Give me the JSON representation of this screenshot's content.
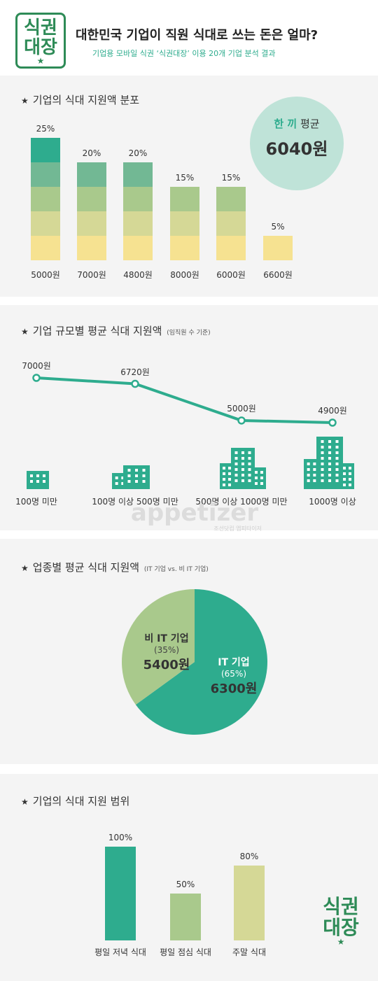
{
  "header": {
    "logo_line1": "식권",
    "logo_line2": "대장",
    "title": "대한민국 기업이 직원 식대로 쓰는 돈은 얼마?",
    "subtitle": "기업용 모바일 식권 ‘식권대장’ 이용 20개 기업 분석 결과"
  },
  "colors": {
    "green_dark": "#2eac8e",
    "green_mid": "#72b894",
    "green_light": "#a9c98c",
    "yellow_green": "#d5d896",
    "yellow": "#f6e291",
    "accent": "#2e8b57"
  },
  "section1": {
    "title": "기업의 식대 지원액 분포",
    "avg_label_highlight": "한 끼",
    "avg_label_rest": " 평균",
    "avg_value": "6040원"
  },
  "section2": {
    "title": "기업 규모별 평균 식대 지원액",
    "subtitle": "(임직원 수 기준)"
  },
  "watermark": {
    "brand": "appetizer",
    "tagline": "조선닷컴 앱피타이저"
  },
  "section3": {
    "title": "업종별 평균 식대 지원액",
    "subtitle": "(IT 기업 vs. 비 IT 기업)"
  },
  "section4": {
    "title": "기업의 식대 지원 범위"
  },
  "chart_data": [
    {
      "type": "bar",
      "title": "기업의 식대 지원액 분포",
      "categories": [
        "5000원",
        "7000원",
        "4800원",
        "8000원",
        "6000원",
        "6600원"
      ],
      "values": [
        25,
        20,
        20,
        15,
        15,
        5
      ],
      "value_labels": [
        "25%",
        "20%",
        "20%",
        "15%",
        "15%",
        "5%"
      ],
      "unit": "%",
      "stacked_segments": true
    },
    {
      "type": "line",
      "title": "기업 규모별 평균 식대 지원액",
      "categories": [
        "100명 미만",
        "100명 이상 500명 미만",
        "500명 이상 1000명 미만",
        "1000명 이상"
      ],
      "values": [
        7000,
        6720,
        5000,
        4900
      ],
      "value_labels": [
        "7000원",
        "6720원",
        "5000원",
        "4900원"
      ]
    },
    {
      "type": "pie",
      "title": "업종별 평균 식대 지원액",
      "slices": [
        {
          "name": "IT 기업",
          "percent": 65,
          "percent_label": "(65%)",
          "value_label": "6300원",
          "color": "#2eac8e"
        },
        {
          "name": "비 IT 기업",
          "percent": 35,
          "percent_label": "(35%)",
          "value_label": "5400원",
          "color": "#a9c98c"
        }
      ]
    },
    {
      "type": "bar",
      "title": "기업의 식대 지원 범위",
      "categories": [
        "평일 저녁 식대",
        "평일 점심 식대",
        "주말 식대"
      ],
      "values": [
        100,
        50,
        80
      ],
      "value_labels": [
        "100%",
        "50%",
        "80%"
      ],
      "colors": [
        "#2eac8e",
        "#a9c98c",
        "#d5d896"
      ],
      "unit": "%"
    }
  ]
}
